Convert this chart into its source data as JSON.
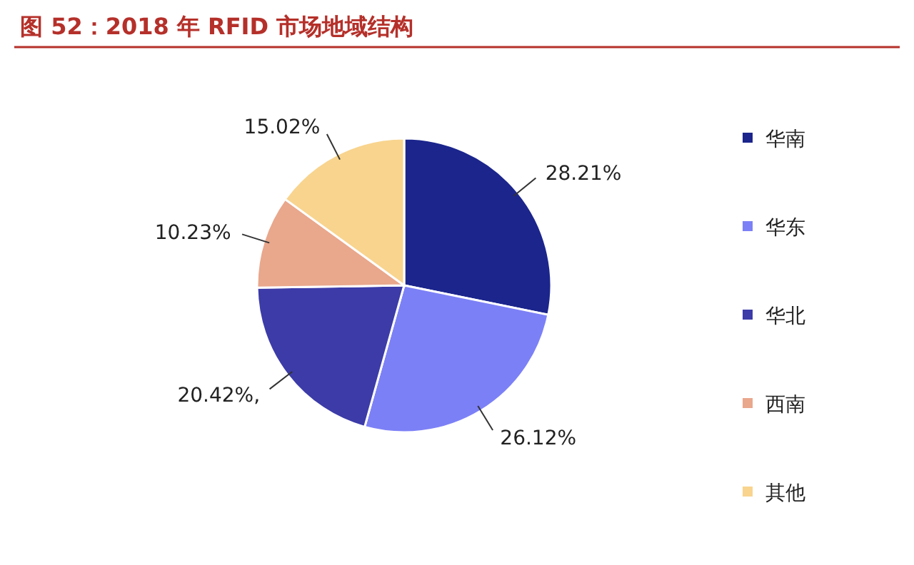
{
  "chart_data": {
    "type": "pie",
    "title": "图 52：2018 年 RFID 市场地域结构",
    "categories": [
      "华南",
      "华东",
      "华北",
      "西南",
      "其他"
    ],
    "values": [
      28.21,
      26.12,
      20.42,
      10.23,
      15.02
    ],
    "colors": [
      "#1b258c",
      "#7c80f6",
      "#3c3ba8",
      "#e9a78c",
      "#f8d48e"
    ],
    "value_labels": [
      "28.21%",
      "26.12%",
      "20.42%,",
      "10.23%",
      "15.02%"
    ],
    "legend": "right"
  }
}
